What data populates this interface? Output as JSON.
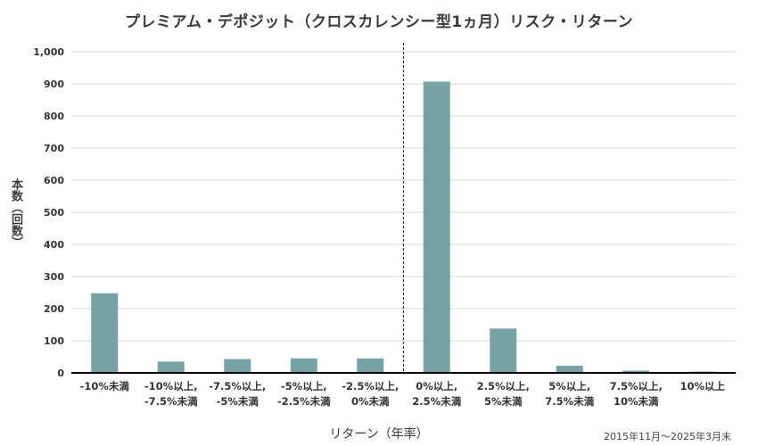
{
  "chart_data": {
    "type": "bar",
    "title": "プレミアム・デポジット（クロスカレンシー型1ヵ月）リスク・リターン",
    "xlabel": "リターン（年率）",
    "ylabel": "本数（回数）",
    "note": "2015年11月〜2025年3月末",
    "ylim": [
      0,
      1000
    ],
    "yticks": [
      0,
      100,
      200,
      300,
      400,
      500,
      600,
      700,
      800,
      900,
      1000
    ],
    "ytick_labels": [
      "0",
      "100",
      "200",
      "300",
      "400",
      "500",
      "600",
      "700",
      "800",
      "900",
      "1,000"
    ],
    "grid": true,
    "categories": [
      [
        "-10%未満"
      ],
      [
        "-10%以上,",
        "-7.5%未満"
      ],
      [
        "-7.5%以上,",
        "-5%未満"
      ],
      [
        "-5%以上,",
        "-2.5%未満"
      ],
      [
        "-2.5%以上,",
        "0%未満"
      ],
      [
        "0%以上,",
        "2.5%未満"
      ],
      [
        "2.5%以上,",
        "5%未満"
      ],
      [
        "5%以上,",
        "7.5%未満"
      ],
      [
        "7.5%以上,",
        "10%未満"
      ],
      [
        "10%以上"
      ]
    ],
    "values": [
      248,
      35,
      43,
      45,
      45,
      907,
      138,
      22,
      7,
      4
    ],
    "bar_color": "#77a3a6",
    "grid_color": "#d4d4d4",
    "axis_color": "#000000"
  }
}
